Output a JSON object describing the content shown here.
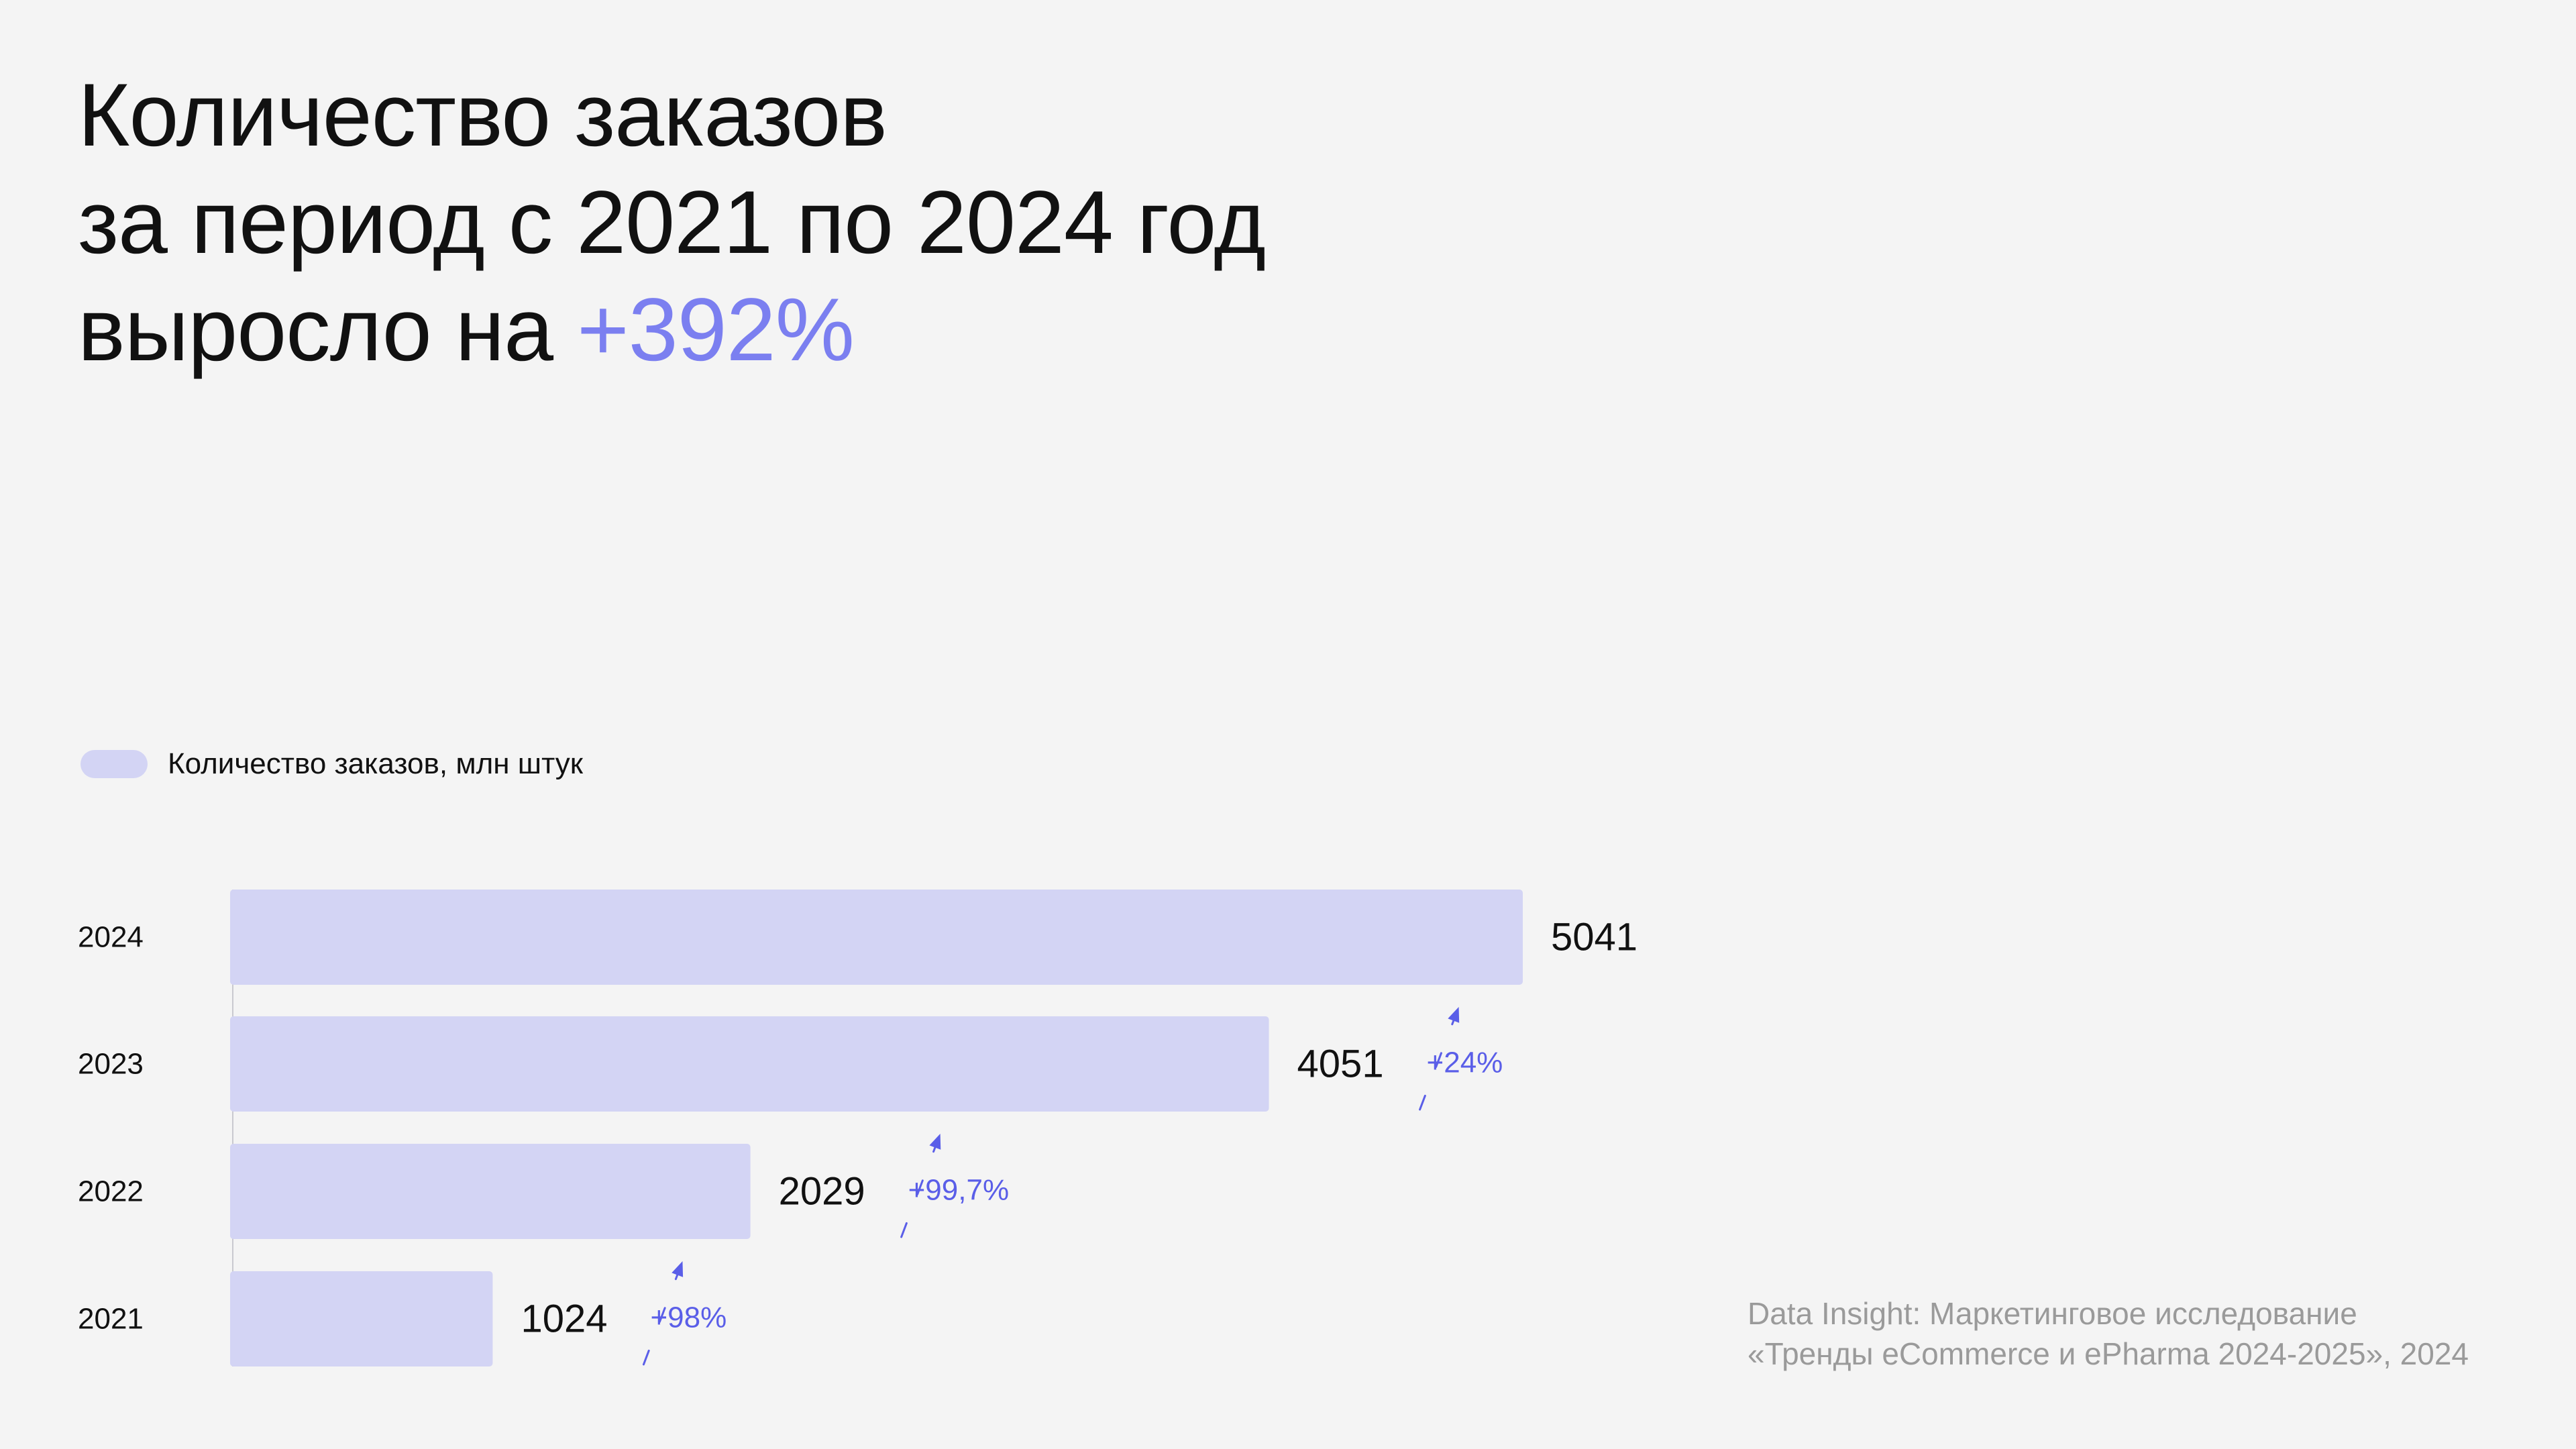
{
  "title": {
    "line1": "Количество заказов",
    "line2": "за период с 2021 по 2024 год",
    "line3_prefix": "выросло на",
    "line3_accent": "+392%"
  },
  "legend": {
    "label": "Количество заказов, млн штук"
  },
  "source": {
    "line1": "Data Insight: Маркетинговое исследование",
    "line2": "«Тренды eCommerce и ePharma 2024-2025», 2024"
  },
  "colors": {
    "bar": "#d3d4f4",
    "accent": "#7b7ff0",
    "growth": "#5a5ee8",
    "text": "#111111",
    "muted": "#9a9a9a",
    "axis": "#c9c9cf",
    "background": "#f4f4f4"
  },
  "chart_data": {
    "type": "bar",
    "orientation": "horizontal",
    "categories": [
      "2024",
      "2023",
      "2022",
      "2021"
    ],
    "series": [
      {
        "name": "Количество заказов, млн штук",
        "values": [
          5041,
          4051,
          2029,
          1024
        ]
      }
    ],
    "value_labels": [
      "5041",
      "4051",
      "2029",
      "1024"
    ],
    "growth_annotations": [
      {
        "from": "2023",
        "to": "2024",
        "label": "+24%"
      },
      {
        "from": "2022",
        "to": "2023",
        "label": "+99,7%"
      },
      {
        "from": "2021",
        "to": "2022",
        "label": "+98%"
      }
    ],
    "xlim": [
      0,
      5041
    ],
    "grid": false,
    "legend_position": "top-left"
  }
}
